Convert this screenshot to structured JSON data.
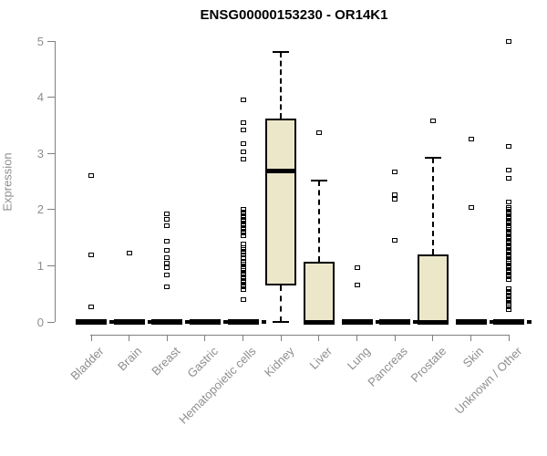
{
  "chart_data": {
    "type": "boxplot",
    "title": "ENSG00000153230 - OR14K1",
    "ylabel": "Expression",
    "xlabel": "",
    "ylim": [
      0,
      5
    ],
    "yticks": [
      0,
      1,
      2,
      3,
      4,
      5
    ],
    "grid": false,
    "legend": "none",
    "categories": [
      "Bladder",
      "Brain",
      "Breast",
      "Gastric",
      "Hematopoietic cells",
      "Kidney",
      "Liver",
      "Lung",
      "Pancreas",
      "Prostate",
      "Skin",
      "Unknown / Other"
    ],
    "boxes": [
      {
        "category": "Bladder",
        "collapsed": true,
        "q1": 0,
        "median": 0,
        "q3": 0,
        "whisker_low": 0,
        "whisker_high": 0,
        "zero_marker": true,
        "outliers": [
          2.6,
          1.19,
          0.26
        ]
      },
      {
        "category": "Brain",
        "collapsed": true,
        "q1": 0,
        "median": 0,
        "q3": 0,
        "whisker_low": 0,
        "whisker_high": 0,
        "zero_marker": true,
        "outliers": [
          1.22
        ]
      },
      {
        "category": "Breast",
        "collapsed": true,
        "q1": 0,
        "median": 0,
        "q3": 0,
        "whisker_low": 0,
        "whisker_high": 0,
        "zero_marker": true,
        "outliers": [
          1.93,
          1.83,
          1.72,
          1.44,
          1.28,
          1.14,
          1.05,
          0.97,
          0.84,
          0.63
        ]
      },
      {
        "category": "Gastric",
        "collapsed": true,
        "q1": 0,
        "median": 0,
        "q3": 0,
        "whisker_low": 0,
        "whisker_high": 0,
        "zero_marker": true,
        "outliers": []
      },
      {
        "category": "Hematopoietic cells",
        "collapsed": true,
        "q1": 0,
        "median": 0,
        "q3": 0,
        "whisker_low": 0,
        "whisker_high": 0,
        "zero_marker": true,
        "outliers": [
          3.95,
          3.54,
          3.41,
          3.18,
          3.02,
          2.89,
          2.0,
          1.96,
          1.92,
          1.87,
          1.83,
          1.79,
          1.75,
          1.71,
          1.66,
          1.62,
          1.58,
          1.54,
          1.38,
          1.33,
          1.29,
          1.24,
          1.2,
          1.15,
          1.07,
          1.03,
          0.99,
          0.95,
          0.91,
          0.87,
          0.83,
          0.78,
          0.74,
          0.7,
          0.66,
          0.62,
          0.57,
          0.4
        ]
      },
      {
        "category": "Kidney",
        "collapsed": false,
        "q1": 0.65,
        "median": 2.68,
        "q3": 3.62,
        "whisker_low": 0,
        "whisker_high": 4.8,
        "zero_marker": false,
        "outliers": []
      },
      {
        "category": "Liver",
        "collapsed": false,
        "q1": 0,
        "median": 0,
        "q3": 1.07,
        "whisker_low": 0,
        "whisker_high": 2.52,
        "zero_marker": false,
        "outliers": [
          3.37
        ]
      },
      {
        "category": "Lung",
        "collapsed": true,
        "q1": 0,
        "median": 0,
        "q3": 0,
        "whisker_low": 0,
        "whisker_high": 0,
        "zero_marker": true,
        "outliers": [
          0.97,
          0.65
        ]
      },
      {
        "category": "Pancreas",
        "collapsed": true,
        "q1": 0,
        "median": 0,
        "q3": 0,
        "whisker_low": 0,
        "whisker_high": 0,
        "zero_marker": true,
        "outliers": [
          2.67,
          2.26,
          2.19,
          1.46
        ]
      },
      {
        "category": "Prostate",
        "collapsed": false,
        "q1": 0,
        "median": 0,
        "q3": 1.2,
        "whisker_low": 0,
        "whisker_high": 2.92,
        "zero_marker": false,
        "outliers": [
          3.58
        ]
      },
      {
        "category": "Skin",
        "collapsed": true,
        "q1": 0,
        "median": 0,
        "q3": 0,
        "whisker_low": 0,
        "whisker_high": 0,
        "zero_marker": true,
        "outliers": [
          3.26,
          2.03
        ]
      },
      {
        "category": "Unknown / Other",
        "collapsed": true,
        "q1": 0,
        "median": 0,
        "q3": 0,
        "whisker_low": 0,
        "whisker_high": 0,
        "zero_marker": true,
        "outliers": [
          5.0,
          3.13,
          2.71,
          2.55,
          2.14,
          2.04,
          2.0,
          1.96,
          1.92,
          1.88,
          1.84,
          1.8,
          1.76,
          1.72,
          1.68,
          1.64,
          1.6,
          1.56,
          1.52,
          1.48,
          1.44,
          1.4,
          1.36,
          1.32,
          1.28,
          1.24,
          1.2,
          1.16,
          1.12,
          1.08,
          1.04,
          1.0,
          0.96,
          0.92,
          0.88,
          0.84,
          0.8,
          0.76,
          0.59,
          0.55,
          0.51,
          0.46,
          0.42,
          0.38,
          0.34,
          0.3,
          0.26,
          0.22
        ]
      }
    ],
    "colors": {
      "box_fill": "#EDE7CA",
      "box_border": "#000000",
      "median": "#000000",
      "outlier": "#000000",
      "axis": "#7f7f7f",
      "tick_label": "#8e8e8e",
      "title": "#000000",
      "background": "#ffffff"
    }
  }
}
